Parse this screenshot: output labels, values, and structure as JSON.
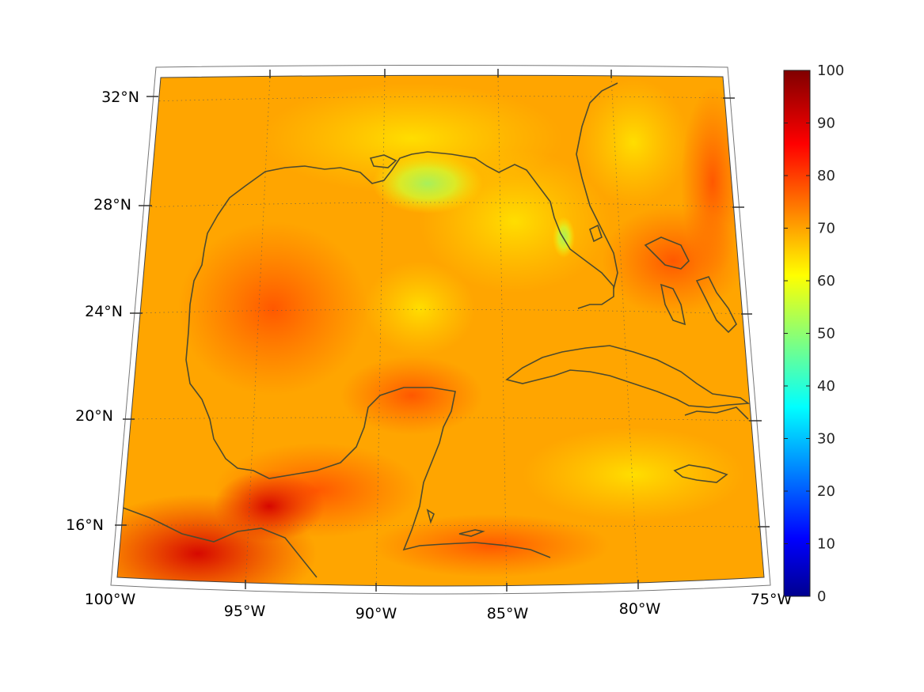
{
  "map": {
    "region": "Gulf of Mexico",
    "projection": "conic",
    "field": "scalar",
    "colormap": "jet",
    "lon_labels": [
      "100°W",
      "95°W",
      "90°W",
      "85°W",
      "80°W",
      "75°W"
    ],
    "lat_labels": [
      "16°N",
      "20°N",
      "24°N",
      "28°N",
      "32°N"
    ],
    "lon_range": [
      -100,
      -75
    ],
    "lat_range": [
      14,
      33
    ],
    "coastline_color": "#4d4a2e",
    "grid": "dotted"
  },
  "colorbar": {
    "min": 0,
    "max": 100,
    "ticks": [
      "0",
      "10",
      "20",
      "30",
      "40",
      "50",
      "60",
      "70",
      "80",
      "90",
      "100"
    ]
  }
}
